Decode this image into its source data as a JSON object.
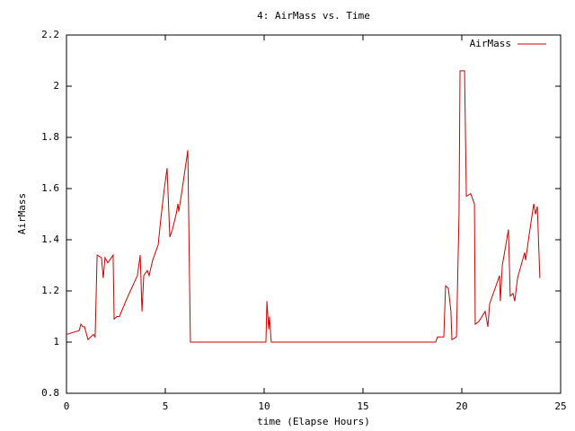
{
  "chart_data": {
    "type": "line",
    "title": "4: AirMass vs. Time",
    "x_label": "time (Elapse Hours)",
    "y_label": "AirMass",
    "x": [
      0,
      0.64,
      0.73,
      0.82,
      0.91,
      1.09,
      1.36,
      1.45,
      1.55,
      1.77,
      1.86,
      1.95,
      2.09,
      2.27,
      2.36,
      2.41,
      2.55,
      2.68,
      3.0,
      3.23,
      3.59,
      3.73,
      3.82,
      3.91,
      4.09,
      4.18,
      4.36,
      4.64,
      4.77,
      4.95,
      5.09,
      5.14,
      5.23,
      5.36,
      5.55,
      5.64,
      5.68,
      5.86,
      6.14,
      6.23,
      6.27,
      10.09,
      10.14,
      10.23,
      10.27,
      10.36,
      18.68,
      18.77,
      19.09,
      19.18,
      19.32,
      19.45,
      19.5,
      19.73,
      19.86,
      19.91,
      20.14,
      20.23,
      20.45,
      20.64,
      20.68,
      20.86,
      21.18,
      21.32,
      21.41,
      21.64,
      21.91,
      21.95,
      22.05,
      22.23,
      22.36,
      22.45,
      22.59,
      22.68,
      22.82,
      23.0,
      23.18,
      23.23,
      23.41,
      23.64,
      23.73,
      23.82,
      23.95
    ],
    "series": [
      {
        "name": "AirMass",
        "color": "#cc0000",
        "values": [
          1.03,
          1.045,
          1.07,
          1.06,
          1.06,
          1.01,
          1.03,
          1.02,
          1.34,
          1.33,
          1.25,
          1.33,
          1.31,
          1.33,
          1.34,
          1.09,
          1.1,
          1.1,
          1.16,
          1.2,
          1.26,
          1.34,
          1.12,
          1.26,
          1.28,
          1.26,
          1.32,
          1.38,
          1.48,
          1.6,
          1.68,
          1.58,
          1.41,
          1.44,
          1.5,
          1.54,
          1.51,
          1.6,
          1.75,
          1.22,
          1.0,
          1.0,
          1.16,
          1.05,
          1.1,
          1.0,
          1.0,
          1.02,
          1.02,
          1.22,
          1.21,
          1.12,
          1.01,
          1.02,
          1.5,
          2.06,
          2.06,
          1.57,
          1.58,
          1.54,
          1.07,
          1.08,
          1.12,
          1.06,
          1.15,
          1.2,
          1.26,
          1.16,
          1.3,
          1.38,
          1.44,
          1.18,
          1.19,
          1.16,
          1.25,
          1.3,
          1.35,
          1.32,
          1.42,
          1.54,
          1.5,
          1.53,
          1.25
        ]
      }
    ],
    "xlim": [
      0,
      25
    ],
    "xticks": [
      0,
      5,
      10,
      15,
      20,
      25
    ],
    "ylim": [
      0.8,
      2.2
    ],
    "yticks": [
      0.8,
      1,
      1.2,
      1.4,
      1.6,
      1.8,
      2,
      2.2
    ],
    "legend": "top-right",
    "grid": false
  }
}
